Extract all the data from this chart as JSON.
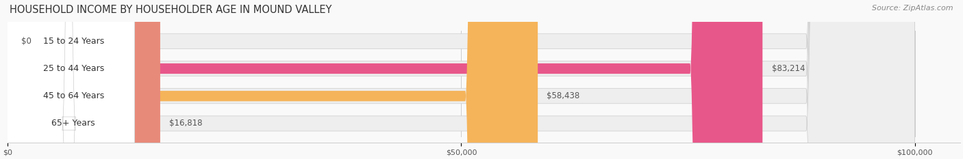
{
  "title": "HOUSEHOLD INCOME BY HOUSEHOLDER AGE IN MOUND VALLEY",
  "source": "Source: ZipAtlas.com",
  "categories": [
    "15 to 24 Years",
    "25 to 44 Years",
    "45 to 64 Years",
    "65+ Years"
  ],
  "values": [
    0,
    83214,
    58438,
    16818
  ],
  "bar_colors": [
    "#a0a0d0",
    "#e8578a",
    "#f5b45a",
    "#e88a7a"
  ],
  "bg_track_color": "#f0f0f0",
  "xlim": [
    0,
    100000
  ],
  "xticks": [
    0,
    50000,
    100000
  ],
  "xtick_labels": [
    "$0",
    "$50,000",
    "$100,000"
  ],
  "value_labels": [
    "$0",
    "$83,214",
    "$58,438",
    "$16,818"
  ],
  "figsize": [
    14.06,
    2.33
  ],
  "dpi": 100
}
